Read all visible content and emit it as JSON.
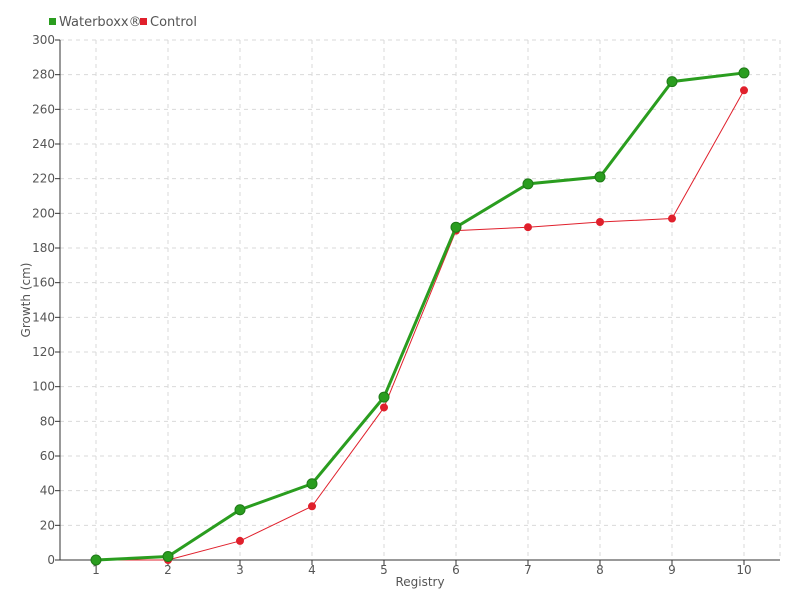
{
  "chart_data": {
    "type": "line",
    "title": "",
    "xlabel": "Registry",
    "ylabel": "Growth (cm)",
    "x": [
      1,
      2,
      3,
      4,
      5,
      6,
      7,
      8,
      9,
      10
    ],
    "xlim": [
      0.5,
      10.5
    ],
    "ylim": [
      0,
      300
    ],
    "yticks": [
      0,
      20,
      40,
      60,
      80,
      100,
      120,
      140,
      160,
      180,
      200,
      220,
      240,
      260,
      280,
      300
    ],
    "grid": true,
    "legend_position": "top-left",
    "series": [
      {
        "name": "Waterboxx®",
        "color": "#2a9d1f",
        "values": [
          0,
          2,
          29,
          44,
          94,
          192,
          217,
          221,
          276,
          281
        ]
      },
      {
        "name": "Control",
        "color": "#e0202c",
        "values": [
          0,
          0,
          11,
          31,
          88,
          190,
          192,
          195,
          197,
          271
        ]
      }
    ]
  }
}
